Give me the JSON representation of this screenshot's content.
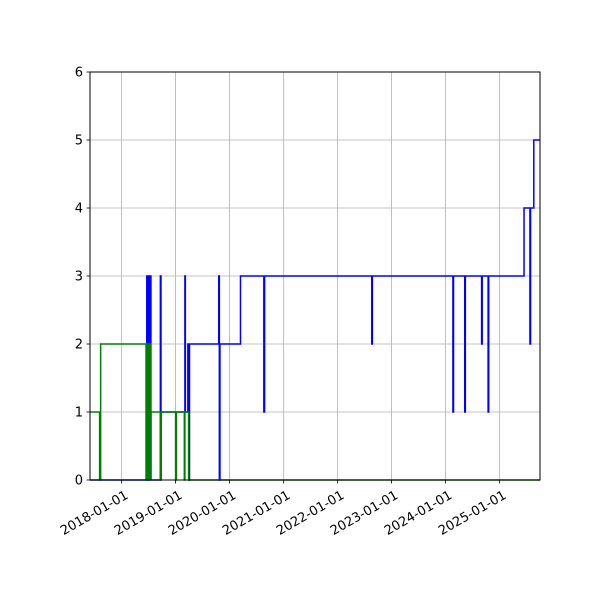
{
  "chart_data": {
    "type": "line",
    "x_axis_type": "date",
    "xlim": [
      "2017-06-01",
      "2025-10-01"
    ],
    "ylim": [
      0,
      6
    ],
    "xticks": [
      "2018-01-01",
      "2019-01-01",
      "2020-01-01",
      "2021-01-01",
      "2022-01-01",
      "2023-01-01",
      "2024-01-01",
      "2025-01-01"
    ],
    "yticks": [
      "0",
      "1",
      "2",
      "3",
      "4",
      "5",
      "6"
    ],
    "grid": true,
    "title": "",
    "xlabel": "",
    "ylabel": "",
    "series": [
      {
        "color": "#0000ff",
        "points": [
          [
            "2017-06-01",
            0
          ],
          [
            "2018-06-20",
            0
          ],
          [
            "2018-06-20",
            3
          ],
          [
            "2018-06-24",
            3
          ],
          [
            "2018-06-24",
            0
          ],
          [
            "2018-06-28",
            0
          ],
          [
            "2018-06-28",
            3
          ],
          [
            "2018-07-02",
            3
          ],
          [
            "2018-07-02",
            0
          ],
          [
            "2018-07-06",
            0
          ],
          [
            "2018-07-06",
            3
          ],
          [
            "2018-07-10",
            3
          ],
          [
            "2018-07-10",
            0
          ],
          [
            "2018-07-14",
            0
          ],
          [
            "2018-07-14",
            3
          ],
          [
            "2018-07-18",
            3
          ],
          [
            "2018-07-18",
            0
          ],
          [
            "2018-09-20",
            0
          ],
          [
            "2018-09-20",
            3
          ],
          [
            "2018-09-24",
            3
          ],
          [
            "2018-09-24",
            1
          ],
          [
            "2019-03-05",
            1
          ],
          [
            "2019-03-05",
            3
          ],
          [
            "2019-03-08",
            3
          ],
          [
            "2019-03-08",
            1
          ],
          [
            "2019-03-25",
            1
          ],
          [
            "2019-03-25",
            2
          ],
          [
            "2019-04-01",
            2
          ],
          [
            "2019-04-01",
            0
          ],
          [
            "2019-04-05",
            0
          ],
          [
            "2019-04-05",
            2
          ],
          [
            "2019-10-20",
            2
          ],
          [
            "2019-10-20",
            3
          ],
          [
            "2019-10-24",
            3
          ],
          [
            "2019-10-24",
            0
          ],
          [
            "2019-10-28",
            0
          ],
          [
            "2019-10-28",
            2
          ],
          [
            "2020-03-15",
            2
          ],
          [
            "2020-03-15",
            3
          ],
          [
            "2020-08-20",
            3
          ],
          [
            "2020-08-20",
            1
          ],
          [
            "2020-08-25",
            1
          ],
          [
            "2020-08-25",
            3
          ],
          [
            "2022-08-20",
            3
          ],
          [
            "2022-08-20",
            2
          ],
          [
            "2022-08-24",
            2
          ],
          [
            "2022-08-24",
            3
          ],
          [
            "2024-02-20",
            3
          ],
          [
            "2024-02-20",
            1
          ],
          [
            "2024-02-24",
            1
          ],
          [
            "2024-02-24",
            3
          ],
          [
            "2024-05-10",
            3
          ],
          [
            "2024-05-10",
            1
          ],
          [
            "2024-05-14",
            1
          ],
          [
            "2024-05-14",
            3
          ],
          [
            "2024-09-01",
            3
          ],
          [
            "2024-09-01",
            2
          ],
          [
            "2024-09-05",
            2
          ],
          [
            "2024-09-05",
            3
          ],
          [
            "2024-10-15",
            3
          ],
          [
            "2024-10-15",
            1
          ],
          [
            "2024-10-19",
            1
          ],
          [
            "2024-10-19",
            3
          ],
          [
            "2025-06-15",
            3
          ],
          [
            "2025-06-15",
            4
          ],
          [
            "2025-07-25",
            4
          ],
          [
            "2025-07-25",
            2
          ],
          [
            "2025-07-29",
            2
          ],
          [
            "2025-07-29",
            4
          ],
          [
            "2025-08-20",
            4
          ],
          [
            "2025-08-20",
            5
          ],
          [
            "2025-10-01",
            5
          ]
        ]
      },
      {
        "color": "#008000",
        "points": [
          [
            "2017-06-01",
            1
          ],
          [
            "2017-08-05",
            1
          ],
          [
            "2017-08-05",
            0
          ],
          [
            "2017-08-12",
            0
          ],
          [
            "2017-08-12",
            2
          ],
          [
            "2018-06-15",
            2
          ],
          [
            "2018-06-15",
            0
          ],
          [
            "2018-06-19",
            0
          ],
          [
            "2018-06-19",
            2
          ],
          [
            "2018-06-23",
            2
          ],
          [
            "2018-06-23",
            0
          ],
          [
            "2018-06-27",
            0
          ],
          [
            "2018-06-27",
            2
          ],
          [
            "2018-07-01",
            2
          ],
          [
            "2018-07-01",
            0
          ],
          [
            "2018-07-05",
            0
          ],
          [
            "2018-07-05",
            2
          ],
          [
            "2018-07-09",
            2
          ],
          [
            "2018-07-09",
            0
          ],
          [
            "2018-07-13",
            0
          ],
          [
            "2018-07-13",
            2
          ],
          [
            "2018-07-17",
            2
          ],
          [
            "2018-07-17",
            1
          ],
          [
            "2018-09-20",
            1
          ],
          [
            "2018-09-20",
            0
          ],
          [
            "2018-09-26",
            0
          ],
          [
            "2018-09-26",
            1
          ],
          [
            "2019-01-01",
            1
          ],
          [
            "2019-01-01",
            0
          ],
          [
            "2019-01-06",
            0
          ],
          [
            "2019-01-06",
            1
          ],
          [
            "2019-03-01",
            1
          ],
          [
            "2019-03-01",
            0
          ],
          [
            "2019-03-05",
            0
          ],
          [
            "2019-03-05",
            1
          ],
          [
            "2019-03-30",
            1
          ],
          [
            "2019-03-30",
            0
          ],
          [
            "2025-10-01",
            0
          ]
        ]
      }
    ]
  }
}
